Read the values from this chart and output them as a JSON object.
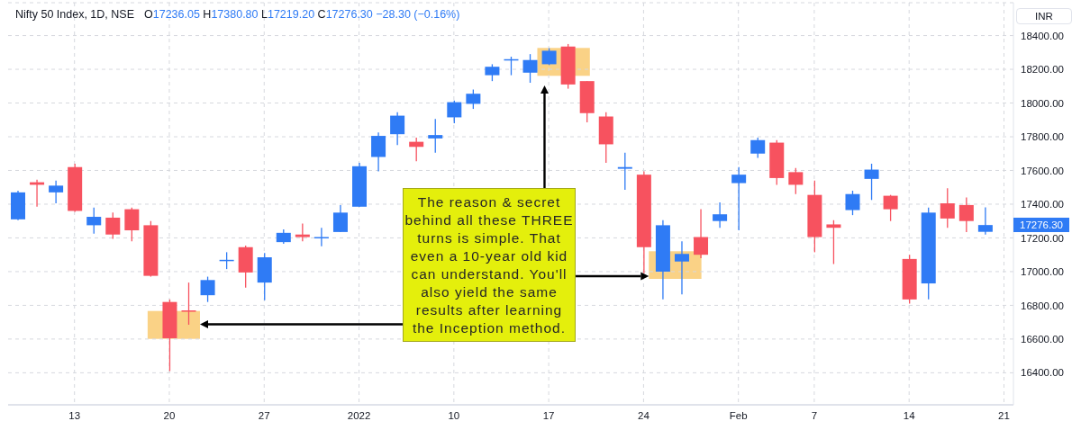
{
  "chart_data": {
    "type": "candlestick",
    "title": "Nifty 50 Index, 1D, NSE",
    "subtitle": "O17236.05 H17380.80 L17219.20 C17276.30 −28.30 (−0.16%)",
    "ylabel": "INR",
    "categories": [
      null,
      null,
      null,
      "13",
      null,
      null,
      null,
      null,
      "20",
      null,
      null,
      null,
      null,
      "27",
      null,
      null,
      null,
      null,
      "2022",
      null,
      null,
      null,
      null,
      "10",
      null,
      null,
      null,
      null,
      "17",
      null,
      null,
      null,
      null,
      "24",
      null,
      null,
      null,
      null,
      "Feb",
      null,
      null,
      null,
      "7",
      null,
      null,
      null,
      null,
      "14",
      null,
      null,
      null,
      null,
      "21"
    ],
    "ohlc": [
      [
        17310,
        17480,
        17305,
        17470
      ],
      [
        17530,
        17545,
        17385,
        17515
      ],
      [
        17470,
        17540,
        17405,
        17510
      ],
      [
        17620,
        17640,
        17355,
        17360
      ],
      [
        17275,
        17380,
        17225,
        17325
      ],
      [
        17320,
        17350,
        17195,
        17220
      ],
      [
        17370,
        17380,
        17180,
        17245
      ],
      [
        17275,
        17300,
        16970,
        16975
      ],
      [
        16820,
        16835,
        16410,
        16605
      ],
      [
        16770,
        16935,
        16685,
        16765
      ],
      [
        16860,
        16970,
        16820,
        16950
      ],
      [
        17065,
        17115,
        17015,
        17070
      ],
      [
        17145,
        17155,
        16905,
        16995
      ],
      [
        16935,
        17110,
        16830,
        17085
      ],
      [
        17175,
        17250,
        17165,
        17230
      ],
      [
        17220,
        17285,
        17180,
        17205
      ],
      [
        17200,
        17260,
        17150,
        17205
      ],
      [
        17235,
        17395,
        17235,
        17350
      ],
      [
        17385,
        17645,
        17385,
        17625
      ],
      [
        17680,
        17825,
        17595,
        17805
      ],
      [
        17815,
        17945,
        17750,
        17925
      ],
      [
        17770,
        17795,
        17655,
        17740
      ],
      [
        17790,
        17905,
        17705,
        17810
      ],
      [
        17915,
        18015,
        17880,
        18005
      ],
      [
        17995,
        18080,
        17965,
        18055
      ],
      [
        18165,
        18230,
        18130,
        18215
      ],
      [
        18255,
        18275,
        18165,
        18260
      ],
      [
        18180,
        18290,
        18120,
        18255
      ],
      [
        18230,
        18325,
        18225,
        18310
      ],
      [
        18335,
        18350,
        18085,
        18110
      ],
      [
        18130,
        18130,
        17885,
        17940
      ],
      [
        17920,
        17945,
        17645,
        17755
      ],
      [
        17610,
        17705,
        17485,
        17620
      ],
      [
        17575,
        17595,
        16990,
        17145
      ],
      [
        17000,
        17305,
        16835,
        17275
      ],
      [
        17060,
        17180,
        16865,
        17105
      ],
      [
        17205,
        17370,
        17080,
        17100
      ],
      [
        17300,
        17410,
        17260,
        17340
      ],
      [
        17525,
        17620,
        17245,
        17575
      ],
      [
        17700,
        17795,
        17675,
        17780
      ],
      [
        17765,
        17780,
        17515,
        17555
      ],
      [
        17590,
        17615,
        17460,
        17515
      ],
      [
        17455,
        17540,
        17115,
        17205
      ],
      [
        17280,
        17305,
        17045,
        17260
      ],
      [
        17365,
        17480,
        17335,
        17460
      ],
      [
        17550,
        17640,
        17425,
        17605
      ],
      [
        17450,
        17455,
        17300,
        17370
      ],
      [
        17075,
        17100,
        16810,
        16835
      ],
      [
        16930,
        17380,
        16835,
        17350
      ],
      [
        17405,
        17495,
        17260,
        17315
      ],
      [
        17395,
        17440,
        17235,
        17300
      ],
      [
        17236.05,
        17380.8,
        17219.2,
        17276.3
      ],
      null
    ],
    "colors": [
      "#2f7bf5",
      "#f7525f",
      "#2f7bf5",
      "#f7525f",
      "#2f7bf5",
      "#f7525f",
      "#f7525f",
      "#f7525f",
      "#f7525f",
      "#f7525f",
      "#2f7bf5",
      "#2f7bf5",
      "#f7525f",
      "#2f7bf5",
      "#2f7bf5",
      "#f7525f",
      "#2f7bf5",
      "#2f7bf5",
      "#2f7bf5",
      "#2f7bf5",
      "#2f7bf5",
      "#f7525f",
      "#2f7bf5",
      "#2f7bf5",
      "#2f7bf5",
      "#2f7bf5",
      "#2f7bf5",
      "#2f7bf5",
      "#2f7bf5",
      "#f7525f",
      "#f7525f",
      "#f7525f",
      "#2f7bf5",
      "#f7525f",
      "#2f7bf5",
      "#2f7bf5",
      "#f7525f",
      "#2f7bf5",
      "#2f7bf5",
      "#2f7bf5",
      "#f7525f",
      "#f7525f",
      "#f7525f",
      "#f7525f",
      "#2f7bf5",
      "#2f7bf5",
      "#f7525f",
      "#f7525f",
      "#2f7bf5",
      "#f7525f",
      "#f7525f",
      "#2f7bf5",
      null
    ],
    "ylim": [
      16210,
      18595
    ],
    "yticks": [
      {
        "value": 16400,
        "label": "16400.00"
      },
      {
        "value": 16600,
        "label": "16600.00"
      },
      {
        "value": 16800,
        "label": "16800.00"
      },
      {
        "value": 17000,
        "label": "17000.00"
      },
      {
        "value": 17200,
        "label": "17200.00"
      },
      {
        "value": 17400,
        "label": "17400.00"
      },
      {
        "value": 17600,
        "label": "17600.00"
      },
      {
        "value": 17800,
        "label": "17800.00"
      },
      {
        "value": 18000,
        "label": "18000.00"
      },
      {
        "value": 18200,
        "label": "18200.00"
      },
      {
        "value": 18400,
        "label": "18400.00"
      }
    ],
    "grid": true,
    "annotations": [
      "The reason & secret behind all these THREE turns is simple. That even a 10-year old kid can understand. You'll also yield the same results after learning the Inception method.",
      "17276.30"
    ]
  }
}
